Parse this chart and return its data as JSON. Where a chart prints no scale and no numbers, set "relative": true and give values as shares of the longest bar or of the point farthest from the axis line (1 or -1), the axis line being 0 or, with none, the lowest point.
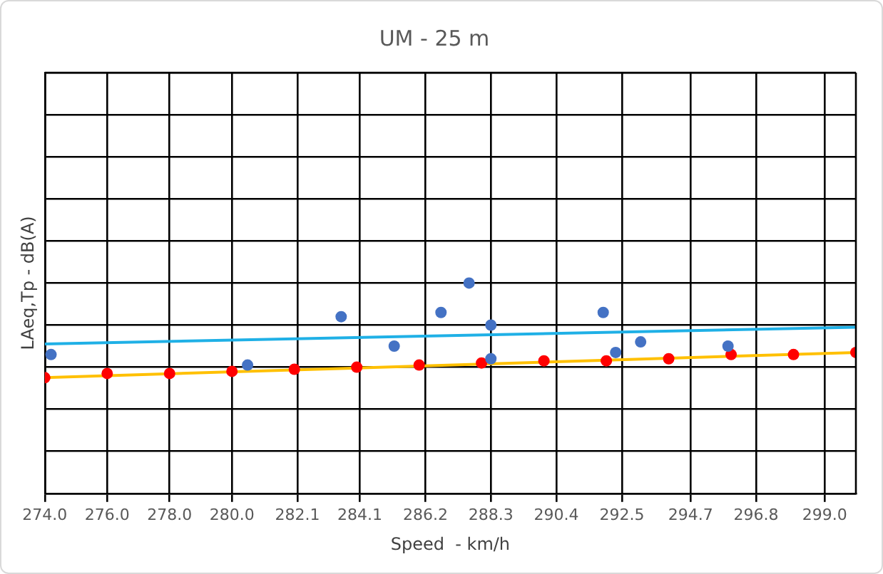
{
  "chart_data": {
    "type": "scatter",
    "title": "UM - 25 m",
    "xlabel": "Speed  - km/h",
    "ylabel": "LAeq,Tp - dB(A)",
    "relative": true,
    "grid": true,
    "legend": false,
    "marker": "circle",
    "xlim": [
      274,
      300
    ],
    "xticks": [
      {
        "value": 274,
        "label": "274.0"
      },
      {
        "value": 276,
        "label": "276.0"
      },
      {
        "value": 278,
        "label": "278.0"
      },
      {
        "value": 280,
        "label": "280.0"
      },
      {
        "value": 282.1,
        "label": "282.1"
      },
      {
        "value": 284.1,
        "label": "284.1"
      },
      {
        "value": 286.2,
        "label": "286.2"
      },
      {
        "value": 288.3,
        "label": "288.3"
      },
      {
        "value": 290.4,
        "label": "290.4"
      },
      {
        "value": 292.5,
        "label": "292.5"
      },
      {
        "value": 294.7,
        "label": "294.7"
      },
      {
        "value": 296.8,
        "label": "296.8"
      },
      {
        "value": 299,
        "label": "299.0"
      }
    ],
    "series": [
      {
        "type": "line",
        "color": "#1fb0e6",
        "marker": "none",
        "x": [
          274,
          300
        ],
        "values": [
          0.71,
          0.79
        ]
      },
      {
        "type": "line",
        "color": "#ffc000",
        "marker": "none",
        "x": [
          274,
          300
        ],
        "values": [
          0.55,
          0.67
        ]
      },
      {
        "type": "scatter",
        "color": "#4472c4",
        "x": [
          274.2,
          280.5,
          283.5,
          285.2,
          286.7,
          287.6,
          288.3,
          288.3,
          291.9,
          292.3,
          293.1,
          295.9
        ],
        "values": [
          0.66,
          0.61,
          0.84,
          0.7,
          0.86,
          1.0,
          0.8,
          0.64,
          0.86,
          0.67,
          0.72,
          0.7
        ]
      },
      {
        "type": "scatter",
        "color": "#ff0000",
        "x": [
          274,
          276,
          278,
          280,
          282,
          284,
          286,
          288,
          290,
          292,
          294,
          296,
          298,
          300
        ],
        "values": [
          0.55,
          0.57,
          0.57,
          0.58,
          0.59,
          0.6,
          0.61,
          0.62,
          0.63,
          0.63,
          0.64,
          0.66,
          0.66,
          0.67
        ]
      }
    ]
  }
}
